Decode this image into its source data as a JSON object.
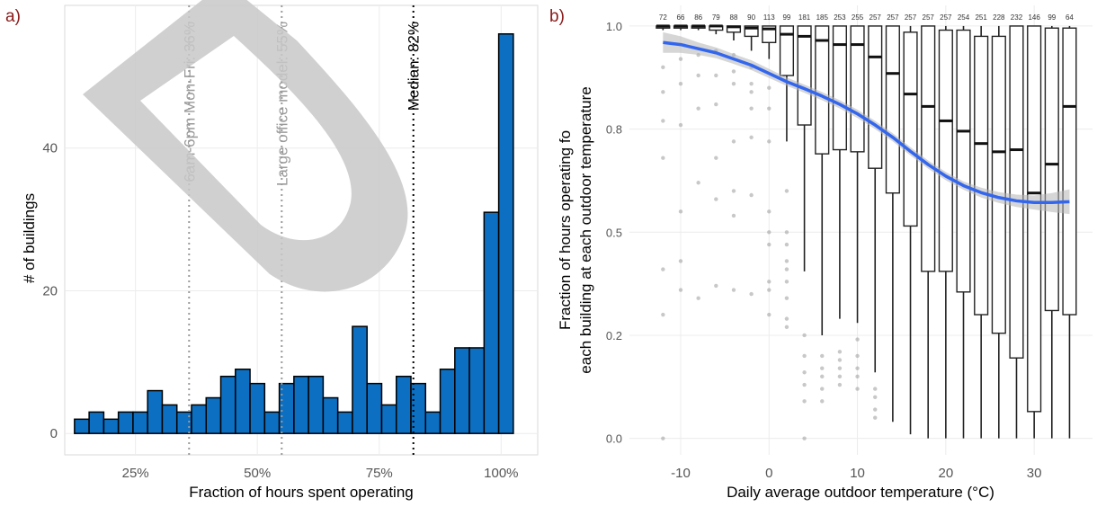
{
  "watermark": {
    "text": "D",
    "color": "#c8c8c8"
  },
  "chart_data": [
    {
      "panel_label": "a)",
      "type": "bar",
      "subtype": "histogram",
      "title": "",
      "xlabel": "Fraction of hours spent operating",
      "ylabel": "# of buildings",
      "xlim": [
        0.105,
        1.075
      ],
      "ylim": [
        -3,
        60
      ],
      "grid": true,
      "fill_color": "#0d6fc1",
      "edge_color": "#000000",
      "bin_width": 0.04,
      "x_ticks": [
        {
          "value": 0.25,
          "label": "25%"
        },
        {
          "value": 0.5,
          "label": "50%"
        },
        {
          "value": 0.75,
          "label": "75%"
        },
        {
          "value": 1.0,
          "label": "100%"
        }
      ],
      "y_ticks": [
        {
          "value": 0,
          "label": "0"
        },
        {
          "value": 20,
          "label": "20"
        },
        {
          "value": 40,
          "label": "40"
        }
      ],
      "bins": [
        {
          "x": 0.14,
          "count": 2
        },
        {
          "x": 0.17,
          "count": 3
        },
        {
          "x": 0.2,
          "count": 2
        },
        {
          "x": 0.23,
          "count": 3
        },
        {
          "x": 0.26,
          "count": 3
        },
        {
          "x": 0.29,
          "count": 6
        },
        {
          "x": 0.32,
          "count": 4
        },
        {
          "x": 0.35,
          "count": 3
        },
        {
          "x": 0.38,
          "count": 4
        },
        {
          "x": 0.41,
          "count": 5
        },
        {
          "x": 0.44,
          "count": 8
        },
        {
          "x": 0.47,
          "count": 9
        },
        {
          "x": 0.5,
          "count": 7
        },
        {
          "x": 0.53,
          "count": 3
        },
        {
          "x": 0.56,
          "count": 7
        },
        {
          "x": 0.59,
          "count": 8
        },
        {
          "x": 0.62,
          "count": 8
        },
        {
          "x": 0.65,
          "count": 5
        },
        {
          "x": 0.68,
          "count": 3
        },
        {
          "x": 0.71,
          "count": 15
        },
        {
          "x": 0.74,
          "count": 7
        },
        {
          "x": 0.77,
          "count": 4
        },
        {
          "x": 0.8,
          "count": 8
        },
        {
          "x": 0.83,
          "count": 7
        },
        {
          "x": 0.86,
          "count": 3
        },
        {
          "x": 0.89,
          "count": 9
        },
        {
          "x": 0.92,
          "count": 12
        },
        {
          "x": 0.95,
          "count": 12
        },
        {
          "x": 0.98,
          "count": 31
        },
        {
          "x": 1.01,
          "count": 56
        }
      ],
      "reference_lines": [
        {
          "x": 0.36,
          "label": "6am-6pm Mon-Fri: 36%",
          "color": "#9a9a9a"
        },
        {
          "x": 0.55,
          "label": "Large office model: 55%",
          "color": "#9a9a9a"
        },
        {
          "x": 0.82,
          "label": "Median: 82%",
          "color": "#000000"
        }
      ]
    },
    {
      "panel_label": "b)",
      "type": "box",
      "title": "",
      "xlabel": "Daily average outdoor temperature (°C)",
      "ylabel_lines": [
        "Fraction of hours operating fo",
        "each building at each outdoor temperature"
      ],
      "xlim": [
        -15.8,
        36.6
      ],
      "ylim": [
        -0.04,
        1.05
      ],
      "grid": true,
      "box_width": 1.5,
      "x_ticks": [
        {
          "value": -10,
          "label": "-10"
        },
        {
          "value": 0,
          "label": "0"
        },
        {
          "value": 10,
          "label": "10"
        },
        {
          "value": 20,
          "label": "20"
        },
        {
          "value": 30,
          "label": "30"
        }
      ],
      "y_ticks": [
        {
          "value": 0.0,
          "label": "0.0"
        },
        {
          "value": 0.25,
          "label": "0.2"
        },
        {
          "value": 0.5,
          "label": "0.5"
        },
        {
          "value": 0.75,
          "label": "0.8"
        },
        {
          "value": 1.0,
          "label": "1.0"
        }
      ],
      "boxes": [
        {
          "x": -12,
          "n": "72",
          "q1": 0.995,
          "median": 1.0,
          "q3": 1.0,
          "lower": 0.99,
          "upper": 1.0
        },
        {
          "x": -10,
          "n": "66",
          "q1": 0.995,
          "median": 1.0,
          "q3": 1.0,
          "lower": 0.99,
          "upper": 1.0
        },
        {
          "x": -8,
          "n": "86",
          "q1": 0.995,
          "median": 1.0,
          "q3": 1.0,
          "lower": 0.99,
          "upper": 1.0
        },
        {
          "x": -6,
          "n": "79",
          "q1": 0.99,
          "median": 1.0,
          "q3": 1.0,
          "lower": 0.98,
          "upper": 1.0
        },
        {
          "x": -4,
          "n": "88",
          "q1": 0.985,
          "median": 0.998,
          "q3": 1.0,
          "lower": 0.965,
          "upper": 1.0
        },
        {
          "x": -2,
          "n": "90",
          "q1": 0.975,
          "median": 0.995,
          "q3": 1.0,
          "lower": 0.94,
          "upper": 1.0
        },
        {
          "x": 0,
          "n": "113",
          "q1": 0.96,
          "median": 0.993,
          "q3": 1.0,
          "lower": 0.92,
          "upper": 1.0
        },
        {
          "x": 2,
          "n": "99",
          "q1": 0.88,
          "median": 0.98,
          "q3": 1.0,
          "lower": 0.72,
          "upper": 1.0
        },
        {
          "x": 4,
          "n": "181",
          "q1": 0.76,
          "median": 0.975,
          "q3": 1.0,
          "lower": 0.405,
          "upper": 1.0
        },
        {
          "x": 6,
          "n": "185",
          "q1": 0.69,
          "median": 0.965,
          "q3": 1.0,
          "lower": 0.25,
          "upper": 1.0
        },
        {
          "x": 8,
          "n": "253",
          "q1": 0.7,
          "median": 0.955,
          "q3": 1.0,
          "lower": 0.29,
          "upper": 1.0
        },
        {
          "x": 10,
          "n": "255",
          "q1": 0.695,
          "median": 0.955,
          "q3": 1.0,
          "lower": 0.28,
          "upper": 1.0
        },
        {
          "x": 12,
          "n": "257",
          "q1": 0.655,
          "median": 0.925,
          "q3": 1.0,
          "lower": 0.16,
          "upper": 1.0
        },
        {
          "x": 14,
          "n": "257",
          "q1": 0.595,
          "median": 0.885,
          "q3": 1.0,
          "lower": 0.04,
          "upper": 1.0
        },
        {
          "x": 16,
          "n": "257",
          "q1": 0.515,
          "median": 0.835,
          "q3": 0.985,
          "lower": 0.01,
          "upper": 1.0
        },
        {
          "x": 18,
          "n": "257",
          "q1": 0.405,
          "median": 0.805,
          "q3": 1.0,
          "lower": 0.0,
          "upper": 1.0
        },
        {
          "x": 20,
          "n": "257",
          "q1": 0.405,
          "median": 0.77,
          "q3": 0.99,
          "lower": 0.0,
          "upper": 1.0
        },
        {
          "x": 22,
          "n": "254",
          "q1": 0.355,
          "median": 0.745,
          "q3": 0.99,
          "lower": 0.0,
          "upper": 1.0
        },
        {
          "x": 24,
          "n": "251",
          "q1": 0.3,
          "median": 0.715,
          "q3": 0.975,
          "lower": 0.0,
          "upper": 1.0
        },
        {
          "x": 26,
          "n": "228",
          "q1": 0.255,
          "median": 0.695,
          "q3": 0.975,
          "lower": 0.0,
          "upper": 1.0
        },
        {
          "x": 28,
          "n": "232",
          "q1": 0.195,
          "median": 0.7,
          "q3": 1.0,
          "lower": 0.0,
          "upper": 1.0
        },
        {
          "x": 30,
          "n": "146",
          "q1": 0.065,
          "median": 0.595,
          "q3": 1.0,
          "lower": 0.0,
          "upper": 1.0
        },
        {
          "x": 32,
          "n": "99",
          "q1": 0.31,
          "median": 0.665,
          "q3": 0.995,
          "lower": 0.0,
          "upper": 1.0
        },
        {
          "x": 34,
          "n": "64",
          "q1": 0.3,
          "median": 0.805,
          "q3": 0.995,
          "lower": 0.0,
          "upper": 1.0
        }
      ],
      "outliers": [
        {
          "x": -12,
          "y": [
            0.9,
            0.84,
            0.77,
            0.68,
            0.41,
            0.3,
            0.0
          ]
        },
        {
          "x": -10,
          "y": [
            0.92,
            0.86,
            0.76,
            0.55,
            0.43,
            0.36
          ]
        },
        {
          "x": -8,
          "y": [
            0.93,
            0.88,
            0.8,
            0.62,
            0.34
          ]
        },
        {
          "x": -6,
          "y": [
            0.94,
            0.88,
            0.81,
            0.68,
            0.58,
            0.37
          ]
        },
        {
          "x": -4,
          "y": [
            0.93,
            0.89,
            0.86,
            0.72,
            0.6,
            0.54,
            0.36
          ]
        },
        {
          "x": -2,
          "y": [
            0.9,
            0.86,
            0.84,
            0.8,
            0.73,
            0.59,
            0.35
          ]
        },
        {
          "x": 0,
          "y": [
            0.85,
            0.8,
            0.72,
            0.55,
            0.5,
            0.47,
            0.38,
            0.36,
            0.3
          ]
        },
        {
          "x": 2,
          "y": [
            0.6,
            0.5,
            0.47,
            0.43,
            0.41,
            0.38,
            0.34,
            0.29,
            0.27
          ]
        },
        {
          "x": 4,
          "y": [
            0.25,
            0.2,
            0.16,
            0.13,
            0.09,
            0.0
          ]
        },
        {
          "x": 6,
          "y": [
            0.2,
            0.17,
            0.15,
            0.12,
            0.09
          ]
        },
        {
          "x": 8,
          "y": [
            0.21,
            0.19,
            0.17,
            0.15,
            0.13
          ]
        },
        {
          "x": 10,
          "y": [
            0.24,
            0.2,
            0.17,
            0.15,
            0.12
          ]
        },
        {
          "x": 12,
          "y": [
            0.12,
            0.1,
            0.07,
            0.05
          ]
        }
      ],
      "smooth_line": {
        "color": "#3366ee",
        "band_color": "#b4b4b4",
        "points": [
          {
            "x": -12,
            "y": 0.96,
            "lo": 0.935,
            "hi": 0.985
          },
          {
            "x": -10,
            "y": 0.955,
            "lo": 0.935,
            "hi": 0.975
          },
          {
            "x": -8,
            "y": 0.945,
            "lo": 0.93,
            "hi": 0.96
          },
          {
            "x": -6,
            "y": 0.935,
            "lo": 0.922,
            "hi": 0.948
          },
          {
            "x": -4,
            "y": 0.92,
            "lo": 0.908,
            "hi": 0.932
          },
          {
            "x": -2,
            "y": 0.905,
            "lo": 0.893,
            "hi": 0.917
          },
          {
            "x": 0,
            "y": 0.885,
            "lo": 0.874,
            "hi": 0.896
          },
          {
            "x": 2,
            "y": 0.865,
            "lo": 0.855,
            "hi": 0.875
          },
          {
            "x": 4,
            "y": 0.848,
            "lo": 0.838,
            "hi": 0.858
          },
          {
            "x": 6,
            "y": 0.83,
            "lo": 0.82,
            "hi": 0.84
          },
          {
            "x": 8,
            "y": 0.81,
            "lo": 0.8,
            "hi": 0.82
          },
          {
            "x": 10,
            "y": 0.787,
            "lo": 0.777,
            "hi": 0.797
          },
          {
            "x": 12,
            "y": 0.76,
            "lo": 0.75,
            "hi": 0.77
          },
          {
            "x": 14,
            "y": 0.73,
            "lo": 0.72,
            "hi": 0.74
          },
          {
            "x": 16,
            "y": 0.696,
            "lo": 0.686,
            "hi": 0.706
          },
          {
            "x": 18,
            "y": 0.664,
            "lo": 0.654,
            "hi": 0.674
          },
          {
            "x": 20,
            "y": 0.636,
            "lo": 0.626,
            "hi": 0.646
          },
          {
            "x": 22,
            "y": 0.613,
            "lo": 0.603,
            "hi": 0.623
          },
          {
            "x": 24,
            "y": 0.596,
            "lo": 0.584,
            "hi": 0.608
          },
          {
            "x": 26,
            "y": 0.584,
            "lo": 0.571,
            "hi": 0.597
          },
          {
            "x": 28,
            "y": 0.576,
            "lo": 0.561,
            "hi": 0.591
          },
          {
            "x": 30,
            "y": 0.572,
            "lo": 0.555,
            "hi": 0.589
          },
          {
            "x": 32,
            "y": 0.572,
            "lo": 0.549,
            "hi": 0.595
          },
          {
            "x": 34,
            "y": 0.574,
            "lo": 0.544,
            "hi": 0.604
          }
        ]
      }
    }
  ]
}
